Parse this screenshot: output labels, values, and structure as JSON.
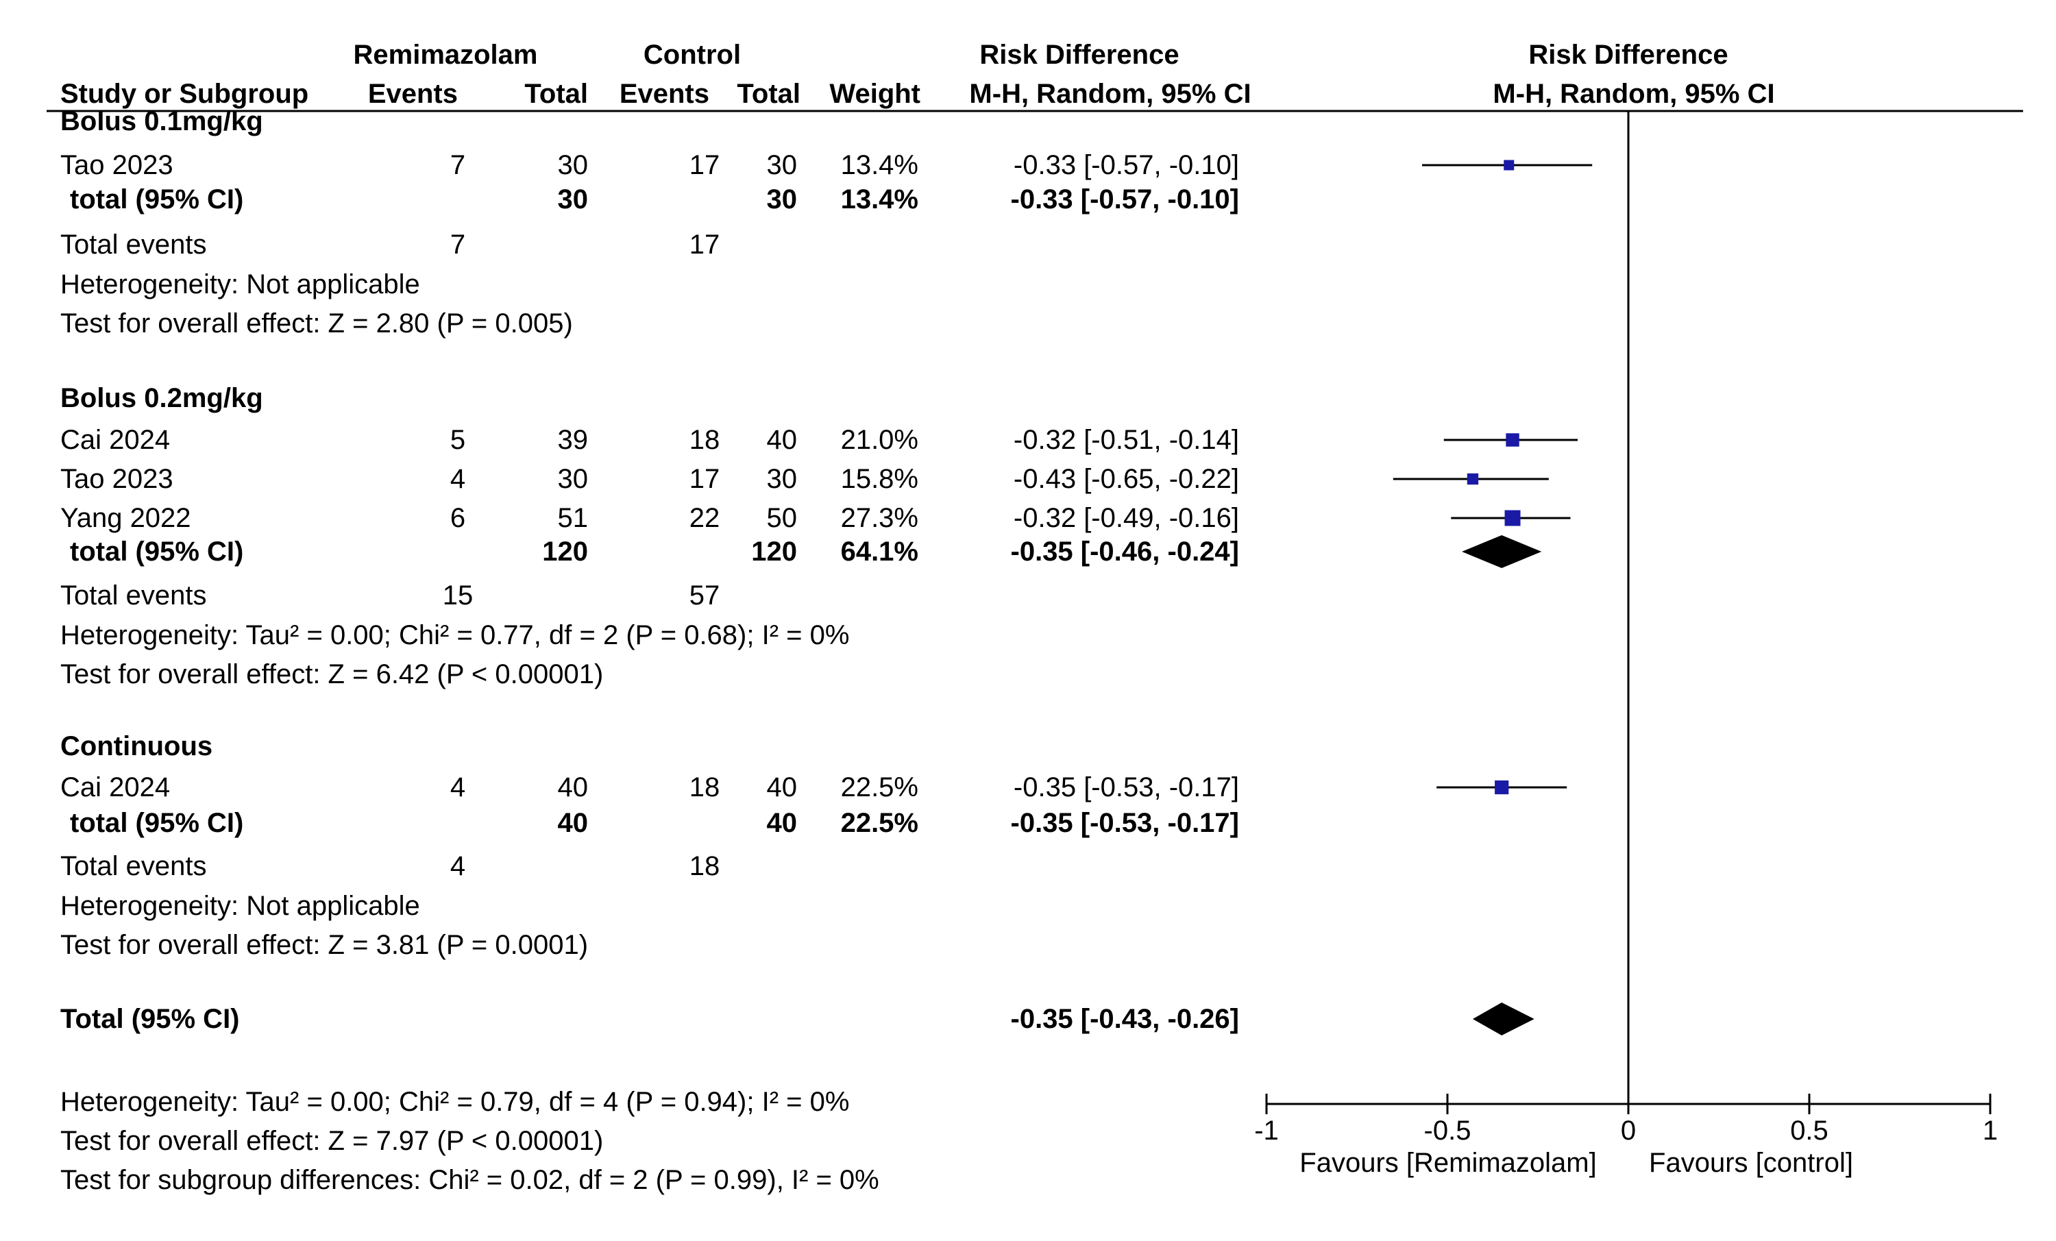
{
  "colors": {
    "marker": "#1a1aa6",
    "line": "#000000",
    "diamond": "#000000",
    "text": "#000000"
  },
  "chart_data": {
    "type": "forest",
    "header": {
      "study_col": "Study or Subgroup",
      "group1": "Remimazolam",
      "group2": "Control",
      "events": "Events",
      "total": "Total",
      "weight": "Weight",
      "effect_title": "Risk Difference",
      "effect_method": "M-H, Random, 95% CI",
      "plot_title": "Risk Difference",
      "plot_method": "M-H, Random, 95% CI"
    },
    "subgroups": [
      {
        "name": "Bolus 0.1mg/kg",
        "studies": [
          {
            "study": "Tao 2023",
            "e1": "7",
            "n1": "30",
            "e2": "17",
            "n2": "30",
            "weight": "13.4%",
            "ci_text": "-0.33 [-0.57, -0.10]",
            "est": -0.33,
            "lo": -0.57,
            "hi": -0.1,
            "w": 13.4
          }
        ],
        "total": {
          "label": "total (95% CI)",
          "n1": "30",
          "n2": "30",
          "weight": "13.4%",
          "ci_text": "-0.33 [-0.57, -0.10]",
          "est": -0.33,
          "lo": -0.57,
          "hi": -0.1,
          "marker": "square"
        },
        "events": {
          "label": "Total events",
          "e1": "7",
          "e2": "17"
        },
        "heterogeneity": "Heterogeneity: Not applicable",
        "overall": "Test for overall effect: Z = 2.80 (P = 0.005)"
      },
      {
        "name": "Bolus 0.2mg/kg",
        "studies": [
          {
            "study": "Cai 2024",
            "e1": "5",
            "n1": "39",
            "e2": "18",
            "n2": "40",
            "weight": "21.0%",
            "ci_text": "-0.32 [-0.51, -0.14]",
            "est": -0.32,
            "lo": -0.51,
            "hi": -0.14,
            "w": 21.0
          },
          {
            "study": "Tao 2023",
            "e1": "4",
            "n1": "30",
            "e2": "17",
            "n2": "30",
            "weight": "15.8%",
            "ci_text": "-0.43 [-0.65, -0.22]",
            "est": -0.43,
            "lo": -0.65,
            "hi": -0.22,
            "w": 15.8
          },
          {
            "study": "Yang 2022",
            "e1": "6",
            "n1": "51",
            "e2": "22",
            "n2": "50",
            "weight": "27.3%",
            "ci_text": "-0.32 [-0.49, -0.16]",
            "est": -0.32,
            "lo": -0.49,
            "hi": -0.16,
            "w": 27.3
          }
        ],
        "total": {
          "label": "total (95% CI)",
          "n1": "120",
          "n2": "120",
          "weight": "64.1%",
          "ci_text": "-0.35 [-0.46, -0.24]",
          "est": -0.35,
          "lo": -0.46,
          "hi": -0.24,
          "marker": "diamond"
        },
        "events": {
          "label": "Total events",
          "e1": "15",
          "e2": "57"
        },
        "heterogeneity": "Heterogeneity: Tau² = 0.00; Chi² = 0.77, df = 2 (P = 0.68); I² = 0%",
        "overall": "Test for overall effect: Z = 6.42 (P < 0.00001)"
      },
      {
        "name": "Continuous",
        "studies": [
          {
            "study": "Cai 2024",
            "e1": "4",
            "n1": "40",
            "e2": "18",
            "n2": "40",
            "weight": "22.5%",
            "ci_text": "-0.35 [-0.53, -0.17]",
            "est": -0.35,
            "lo": -0.53,
            "hi": -0.17,
            "w": 22.5
          }
        ],
        "total": {
          "label": "total (95% CI)",
          "n1": "40",
          "n2": "40",
          "weight": "22.5%",
          "ci_text": "-0.35 [-0.53, -0.17]",
          "est": -0.35,
          "lo": -0.53,
          "hi": -0.17,
          "marker": "square"
        },
        "events": {
          "label": "Total events",
          "e1": "4",
          "e2": "18"
        },
        "heterogeneity": "Heterogeneity: Not applicable",
        "overall": "Test for overall effect: Z = 3.81 (P = 0.0001)"
      }
    ],
    "overall_total": {
      "label": "Total (95% CI)",
      "ci_text": "-0.35 [-0.43, -0.26]",
      "est": -0.35,
      "lo": -0.43,
      "hi": -0.26
    },
    "footer": [
      "Heterogeneity: Tau² = 0.00; Chi² = 0.79, df = 4 (P = 0.94); I² = 0%",
      "Test for overall effect: Z = 7.97 (P < 0.00001)",
      "Test for subgroup differences: Chi² = 0.02, df = 2 (P = 0.99), I² = 0%"
    ],
    "axis": {
      "xlim": [
        -1,
        1
      ],
      "ticks": [
        -1,
        -0.5,
        0,
        0.5,
        1
      ],
      "tick_labels": [
        "-1",
        "-0.5",
        "0",
        "0.5",
        "1"
      ],
      "favours_left": "Favours [Remimazolam]",
      "favours_right": "Favours [control]"
    }
  }
}
